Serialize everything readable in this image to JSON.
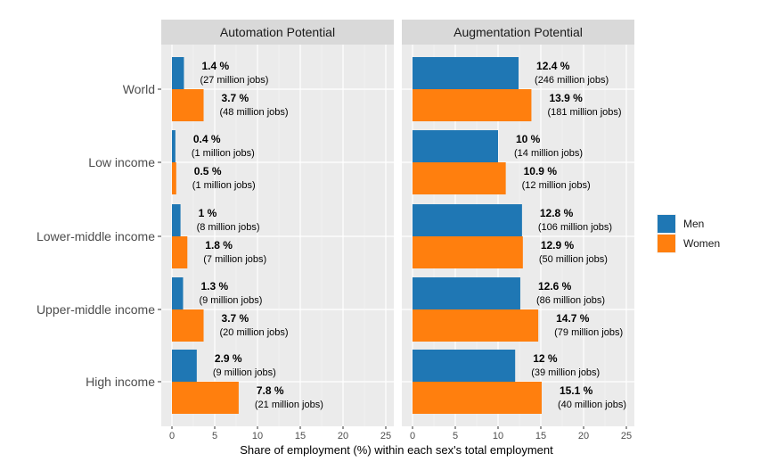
{
  "chart_data": {
    "type": "bar",
    "orientation": "horizontal",
    "facets": [
      "Automation Potential",
      "Augmentation Potential"
    ],
    "categories": [
      "World",
      "Low income",
      "Lower-middle income",
      "Upper-middle income",
      "High income"
    ],
    "xlabel": "Share of employment (%) within each sex's total employment",
    "xlim": [
      0,
      25
    ],
    "xticks": [
      "0",
      "5",
      "10",
      "15",
      "20",
      "25"
    ],
    "grid": true,
    "legend_position": "right",
    "series": [
      {
        "name": "Men",
        "color": "#1f77b4",
        "automation": {
          "values": [
            1.4,
            0.4,
            1.0,
            1.3,
            2.9
          ],
          "labels": [
            "1.4 %",
            "0.4 %",
            "1 %",
            "1.3 %",
            "2.9 %"
          ],
          "sublabels": [
            "(27 million jobs)",
            "(1 million jobs)",
            "(8 million jobs)",
            "(9 million jobs)",
            "(9 million jobs)"
          ]
        },
        "augmentation": {
          "values": [
            12.4,
            10.0,
            12.8,
            12.6,
            12.0
          ],
          "labels": [
            "12.4 %",
            "10 %",
            "12.8 %",
            "12.6 %",
            "12 %"
          ],
          "sublabels": [
            "(246 million jobs)",
            "(14 million jobs)",
            "(106 million jobs)",
            "(86 million jobs)",
            "(39 million jobs)"
          ]
        }
      },
      {
        "name": "Women",
        "color": "#ff7f0e",
        "automation": {
          "values": [
            3.7,
            0.5,
            1.8,
            3.7,
            7.8
          ],
          "labels": [
            "3.7 %",
            "0.5 %",
            "1.8 %",
            "3.7 %",
            "7.8 %"
          ],
          "sublabels": [
            "(48 million jobs)",
            "(1 million jobs)",
            "(7 million jobs)",
            "(20 million jobs)",
            "(21 million jobs)"
          ]
        },
        "augmentation": {
          "values": [
            13.9,
            10.9,
            12.9,
            14.7,
            15.1
          ],
          "labels": [
            "13.9 %",
            "10.9 %",
            "12.9 %",
            "14.7 %",
            "15.1 %"
          ],
          "sublabels": [
            "(181 million jobs)",
            "(12 million jobs)",
            "(50 million jobs)",
            "(79 million jobs)",
            "(40 million jobs)"
          ]
        }
      }
    ]
  }
}
